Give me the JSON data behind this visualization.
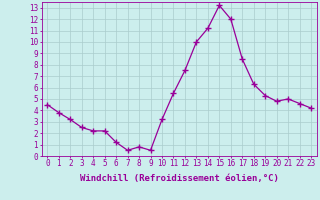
{
  "x": [
    0,
    1,
    2,
    3,
    4,
    5,
    6,
    7,
    8,
    9,
    10,
    11,
    12,
    13,
    14,
    15,
    16,
    17,
    18,
    19,
    20,
    21,
    22,
    23
  ],
  "y": [
    4.5,
    3.8,
    3.2,
    2.5,
    2.2,
    2.2,
    1.2,
    0.5,
    0.8,
    0.5,
    3.2,
    5.5,
    7.5,
    10.0,
    11.2,
    13.2,
    12.0,
    8.5,
    6.3,
    5.3,
    4.8,
    5.0,
    4.6,
    4.2
  ],
  "line_color": "#990099",
  "marker": "D",
  "marker_size": 2.0,
  "bg_color": "#cceeed",
  "grid_color": "#aacccc",
  "xlabel": "Windchill (Refroidissement éolien,°C)",
  "yticks": [
    0,
    1,
    2,
    3,
    4,
    5,
    6,
    7,
    8,
    9,
    10,
    11,
    12,
    13
  ],
  "xlim": [
    -0.5,
    23.5
  ],
  "ylim": [
    0,
    13.5
  ],
  "tick_color": "#990099",
  "label_color": "#990099",
  "tick_fontsize": 5.5,
  "xlabel_fontsize": 6.5
}
